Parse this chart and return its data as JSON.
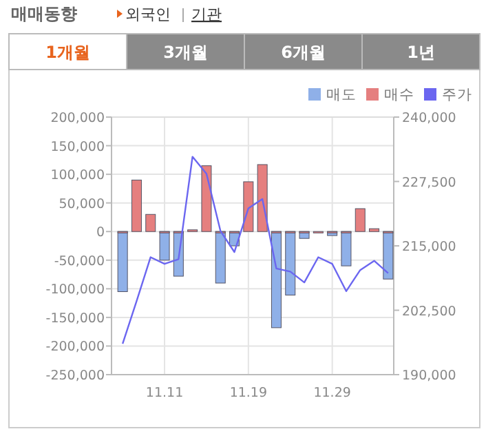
{
  "chart_data": {
    "type": "bar",
    "title": "매매동향",
    "annotations": [
      "외국인",
      "기관",
      "1개월",
      "3개월",
      "6개월",
      "1년"
    ],
    "categories": [
      null,
      null,
      null,
      "11.11",
      null,
      null,
      null,
      null,
      null,
      "11.19",
      null,
      null,
      null,
      null,
      null,
      "11.29",
      null,
      null,
      null,
      null
    ],
    "series": [
      {
        "name": "매도",
        "color": "#8fb0e8",
        "values": [
          -105000,
          null,
          null,
          -50000,
          -78000,
          null,
          null,
          -90000,
          -25000,
          null,
          null,
          -168000,
          -111000,
          -12000,
          null,
          -7000,
          -60000,
          null,
          null,
          -83000
        ]
      },
      {
        "name": "매수",
        "color": "#e57f7f",
        "values": [
          0,
          90000,
          30000,
          0,
          0,
          3000,
          115000,
          0,
          0,
          87000,
          117000,
          0,
          0,
          0,
          0,
          0,
          0,
          40000,
          5000,
          0
        ]
      },
      {
        "name": "주가",
        "type": "line",
        "axis": "y2",
        "color": "#6b66f0",
        "values": [
          196000,
          204300,
          212800,
          211500,
          212400,
          232300,
          229000,
          217900,
          213800,
          222300,
          224100,
          210600,
          210000,
          207900,
          212800,
          211500,
          206200,
          210300,
          212100,
          209700
        ]
      }
    ],
    "ylim": [
      -250000,
      200000
    ],
    "yticks": [
      {
        "value": -250000,
        "label": "-250,000"
      },
      {
        "value": -200000,
        "label": "-200,000"
      },
      {
        "value": -150000,
        "label": "-150,000"
      },
      {
        "value": -100000,
        "label": "-100,000"
      },
      {
        "value": -50000,
        "label": "-50,000"
      },
      0,
      {
        "value": 50000,
        "label": "50,000"
      },
      {
        "value": 100000,
        "label": "100,000"
      },
      {
        "value": 150000,
        "label": "150,000"
      },
      {
        "value": 200000,
        "label": "200,000"
      }
    ],
    "y2lim": [
      190000,
      240000
    ],
    "y2ticks": [
      {
        "value": 190000,
        "label": "190,000"
      },
      {
        "value": 202500,
        "label": "202,500"
      },
      {
        "value": 215000,
        "label": "215,000"
      },
      {
        "value": 227500,
        "label": "227,500"
      },
      {
        "value": 240000,
        "label": "240,000"
      }
    ],
    "grid": true,
    "legend": "top right"
  }
}
